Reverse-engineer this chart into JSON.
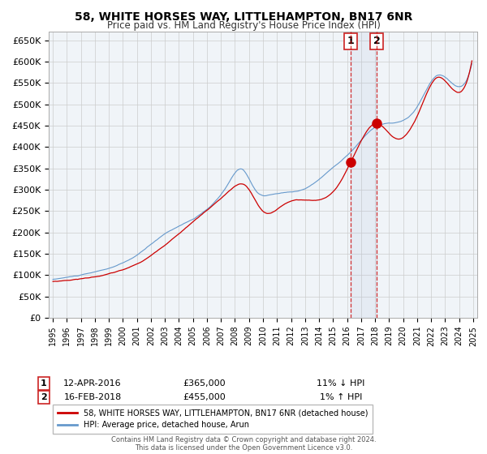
{
  "title": "58, WHITE HORSES WAY, LITTLEHAMPTON, BN17 6NR",
  "subtitle": "Price paid vs. HM Land Registry's House Price Index (HPI)",
  "legend1": "58, WHITE HORSES WAY, LITTLEHAMPTON, BN17 6NR (detached house)",
  "legend2": "HPI: Average price, detached house, Arun",
  "sale1_date": "12-APR-2016",
  "sale1_price": "£365,000",
  "sale1_hpi": "11% ↓ HPI",
  "sale2_date": "16-FEB-2018",
  "sale2_price": "£455,000",
  "sale2_hpi": "1% ↑ HPI",
  "marker1_x": 2016.28,
  "marker1_y": 365000,
  "marker2_x": 2018.12,
  "marker2_y": 455000,
  "vline1_x": 2016.28,
  "vline2_x": 2018.12,
  "ylim": [
    0,
    670000
  ],
  "xlim_start": 1994.7,
  "xlim_end": 2025.3,
  "background_color": "#ffffff",
  "plot_bg_color": "#ffffff",
  "grid_color": "#cccccc",
  "red_color": "#cc0000",
  "blue_color": "#6699cc",
  "footer": "Contains HM Land Registry data © Crown copyright and database right 2024.\nThis data is licensed under the Open Government Licence v3.0."
}
